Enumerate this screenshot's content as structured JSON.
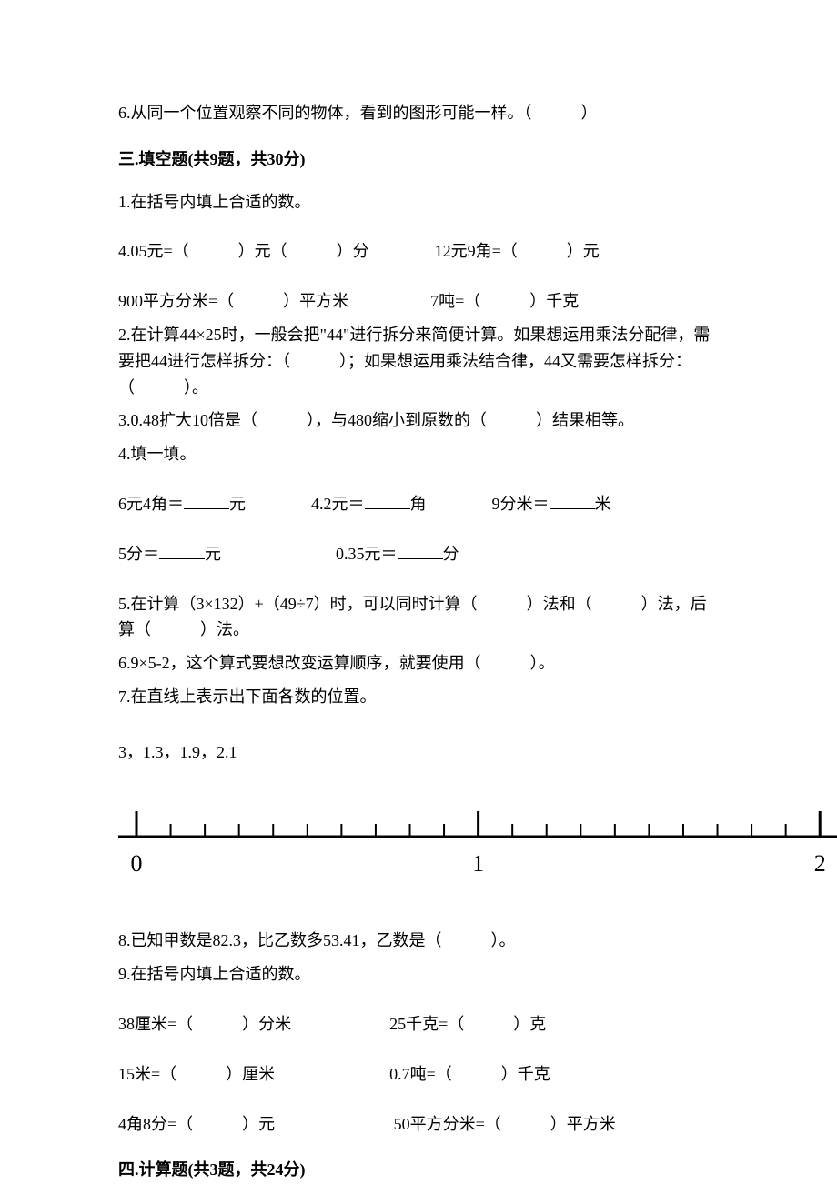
{
  "q_ii_6": "6.从同一个位置观察不同的物体，看到的图形可能一样。（　　　）",
  "section_iii_header": "三.填空题(共9题，共30分)",
  "q_iii_1": "1.在括号内填上合适的数。",
  "q_iii_1_row1": "4.05元=（　　　）元（　　　）分　　　　12元9角=（　　　）元",
  "q_iii_1_row2": "900平方分米=（　　　）平方米　　　　　7吨=（　　　）千克",
  "q_iii_2_a": "2.在计算44×25时，一般会把\"44\"进行拆分来简便计算。如果想运用乘法分配律，需要把44进行怎样拆分：（　　　）；如果想运用乘法结合律，44又需要怎样拆分：（　　　）。",
  "q_iii_3": "3.0.48扩大10倍是（　　　），与480缩小到原数的（　　　）结果相等。",
  "q_iii_4": "4.填一填。",
  "q_iii_4_row1_a": "6元4角＝",
  "q_iii_4_row1_b": "元　　　　4.2元＝",
  "q_iii_4_row1_c": "角　　　　9分米＝",
  "q_iii_4_row1_d": "米",
  "q_iii_4_row2_a": "5分＝",
  "q_iii_4_row2_b": "元　　　　　　　0.35元＝",
  "q_iii_4_row2_c": "分",
  "q_iii_5": "5.在计算（3×132）+（49÷7）时，可以同时计算（　　　）法和（　　　）法，后算（　　　）法。",
  "q_iii_6": "6.9×5-2，这个算式要想改变运算顺序，就要使用（　　　）。",
  "q_iii_7": "7.在直线上表示出下面各数的位置。",
  "q_iii_7_numbers": "3，1.3，1.9，2.1",
  "number_line": {
    "start": 0,
    "end": 2,
    "labels": [
      "0",
      "1",
      "2"
    ],
    "label_positions": [
      0,
      1,
      2
    ],
    "minor_ticks_per_unit": 10,
    "line_color": "#000000",
    "line_width": 3,
    "major_tick_height": 28,
    "minor_tick_height": 14,
    "label_fontsize": 26
  },
  "q_iii_8": "8.已知甲数是82.3，比乙数多53.41，乙数是（　　　）。",
  "q_iii_9": "9.在括号内填上合适的数。",
  "q_iii_9_row1": "38厘米=（　　　）分米　　　　　　25千克=（　　　）克",
  "q_iii_9_row2": "15米=（　　　）厘米　　　　　　　0.7吨=（　　　）千克",
  "q_iii_9_row3": "4角8分=（　　　）元　　　　　　　 50平方分米=（　　　）平方米",
  "section_iv_header": "四.计算题(共3题，共24分)"
}
